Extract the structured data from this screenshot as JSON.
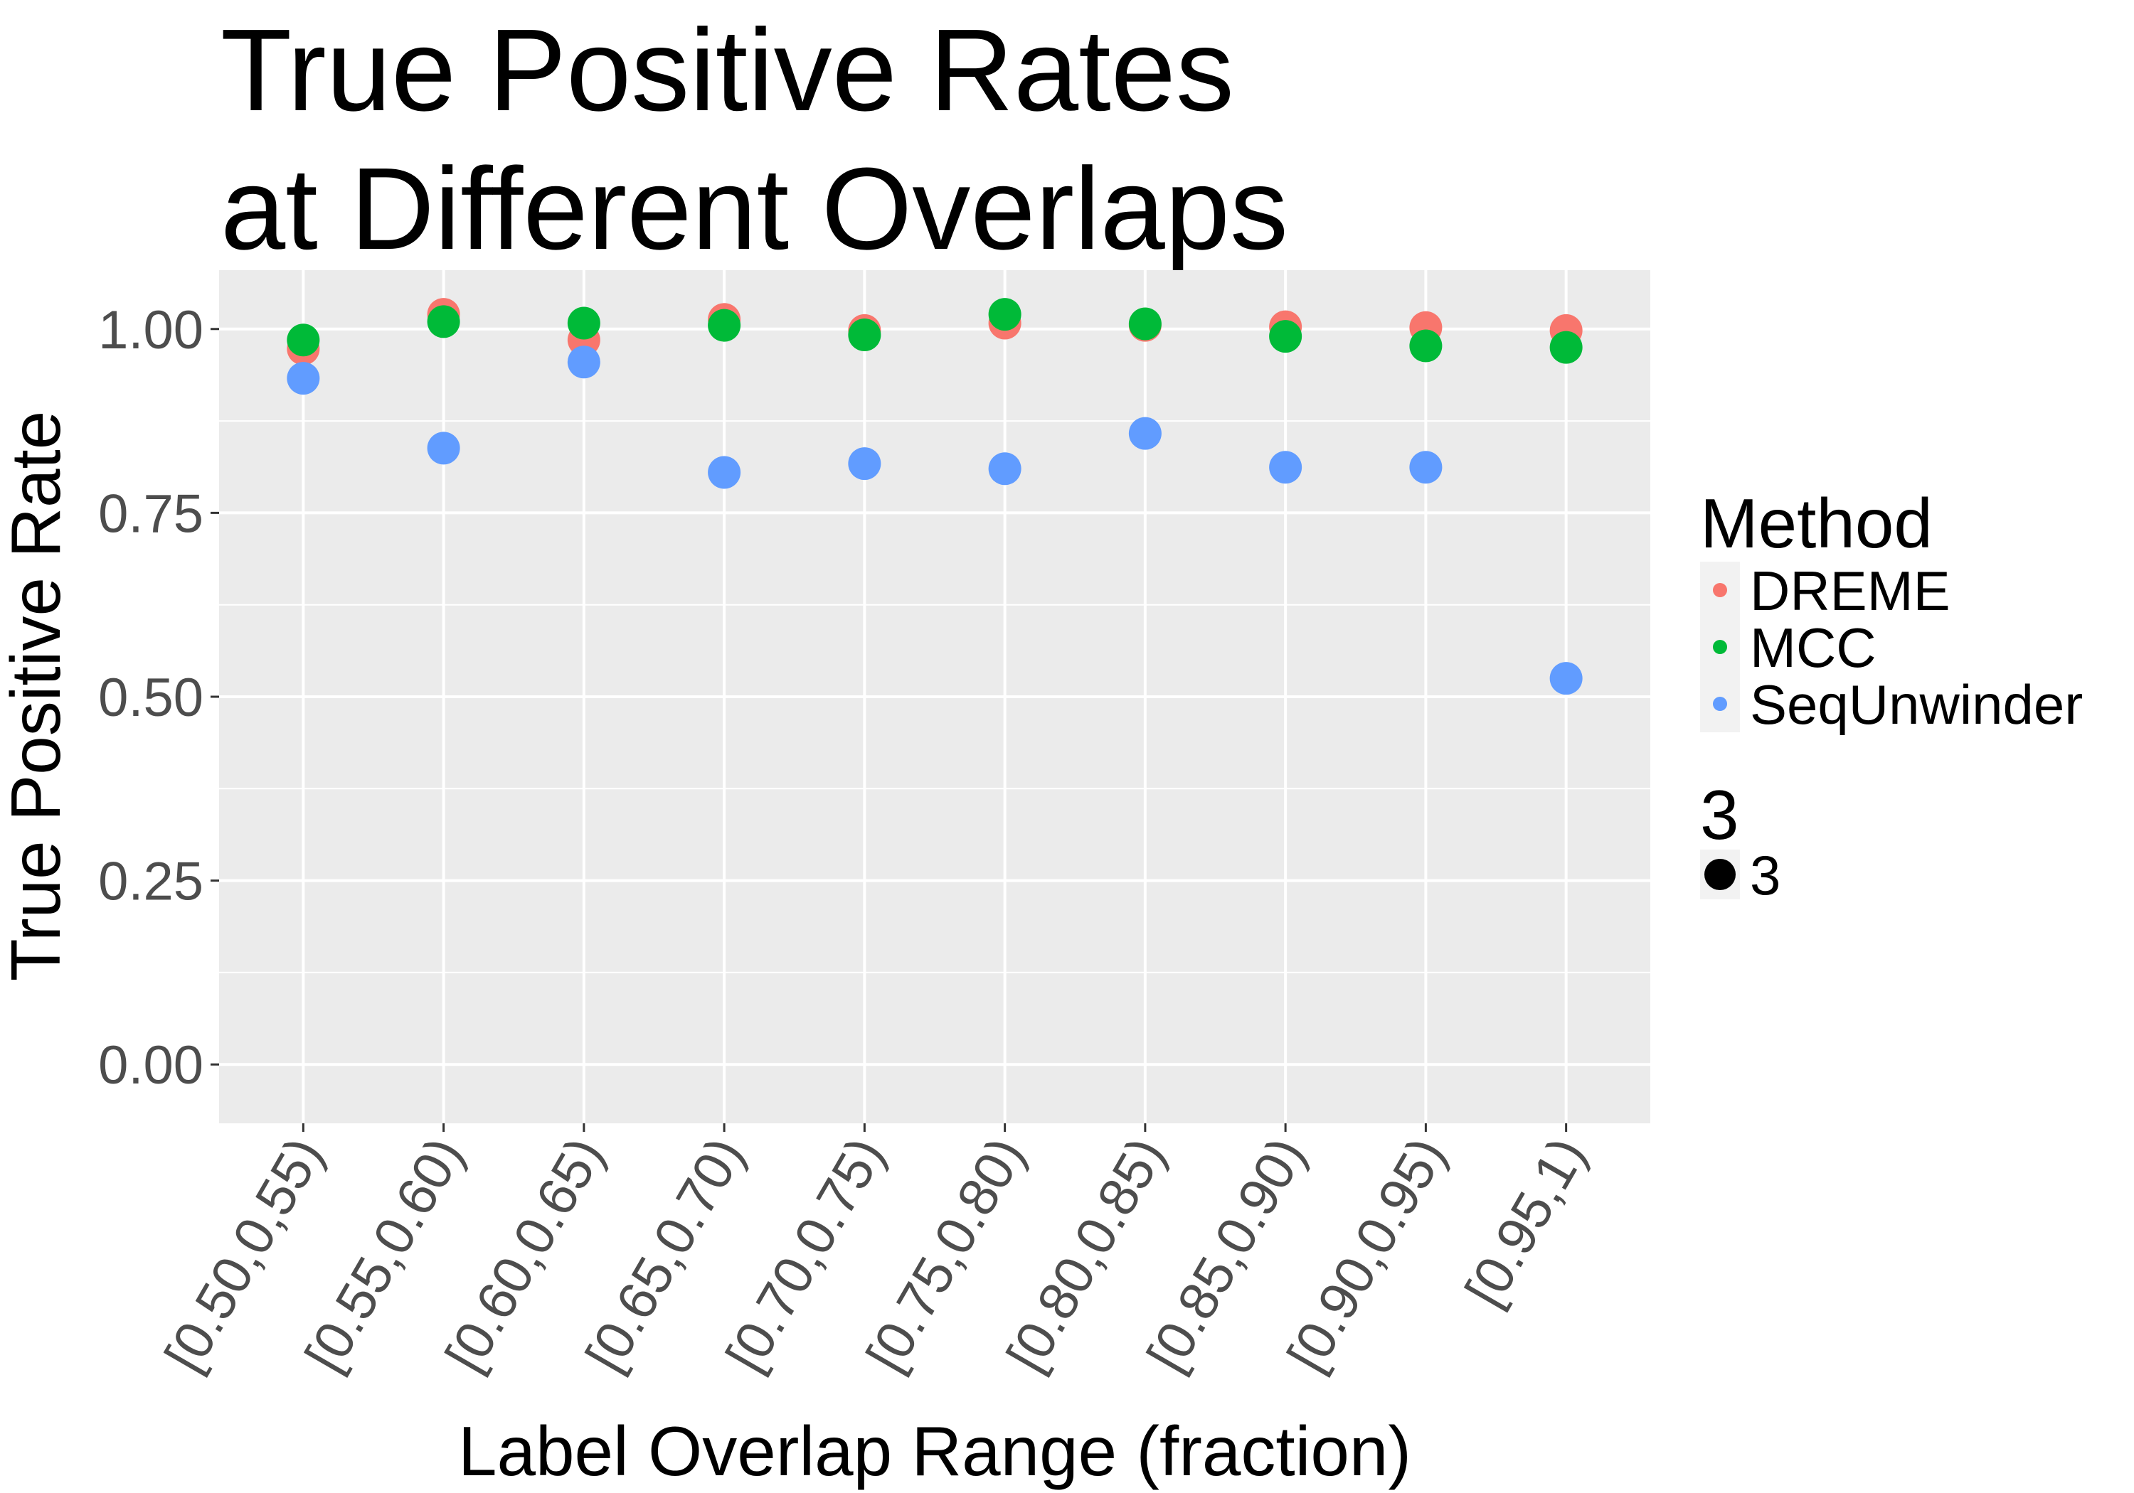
{
  "chart_data": {
    "type": "scatter",
    "title_lines": [
      "True Positive Rates",
      "at Different Overlaps"
    ],
    "xlabel": "Label Overlap Range (fraction)",
    "ylabel": "True Positive Rate",
    "categories": [
      "[0.50,0,55)",
      "[0.55,0.60)",
      "[0.60,0.65)",
      "[0.65,0.70)",
      "[0.70,0.75)",
      "[0.75,0.80)",
      "[0.80,0.85)",
      "[0.85,0.90)",
      "[0.90,0.95)",
      "[0.95,1)"
    ],
    "ylim": [
      -0.08,
      1.08
    ],
    "yticks": [
      0.0,
      0.25,
      0.5,
      0.75,
      1.0
    ],
    "ytick_labels": [
      "0.00",
      "0.25",
      "0.50",
      "0.75",
      "1.00"
    ],
    "grid": true,
    "legend_placement": "right",
    "series": [
      {
        "name": "DREME",
        "color": "#F8766D",
        "values": [
          0.973,
          1.02,
          0.985,
          1.013,
          0.998,
          1.008,
          1.005,
          1.003,
          1.002,
          0.998
        ]
      },
      {
        "name": "MCC",
        "color": "#00BA38",
        "values": [
          0.985,
          1.01,
          1.008,
          1.005,
          0.992,
          1.02,
          1.007,
          0.99,
          0.977,
          0.975
        ]
      },
      {
        "name": "SeqUnwinder",
        "color": "#619CFF",
        "values": [
          0.933,
          0.838,
          0.955,
          0.805,
          0.817,
          0.81,
          0.858,
          0.812,
          0.812,
          0.525
        ]
      }
    ],
    "legends": [
      {
        "title": "Method",
        "entries": [
          "DREME",
          "MCC",
          "SeqUnwinder"
        ]
      },
      {
        "title": "3",
        "entries": [
          "3"
        ]
      }
    ]
  }
}
